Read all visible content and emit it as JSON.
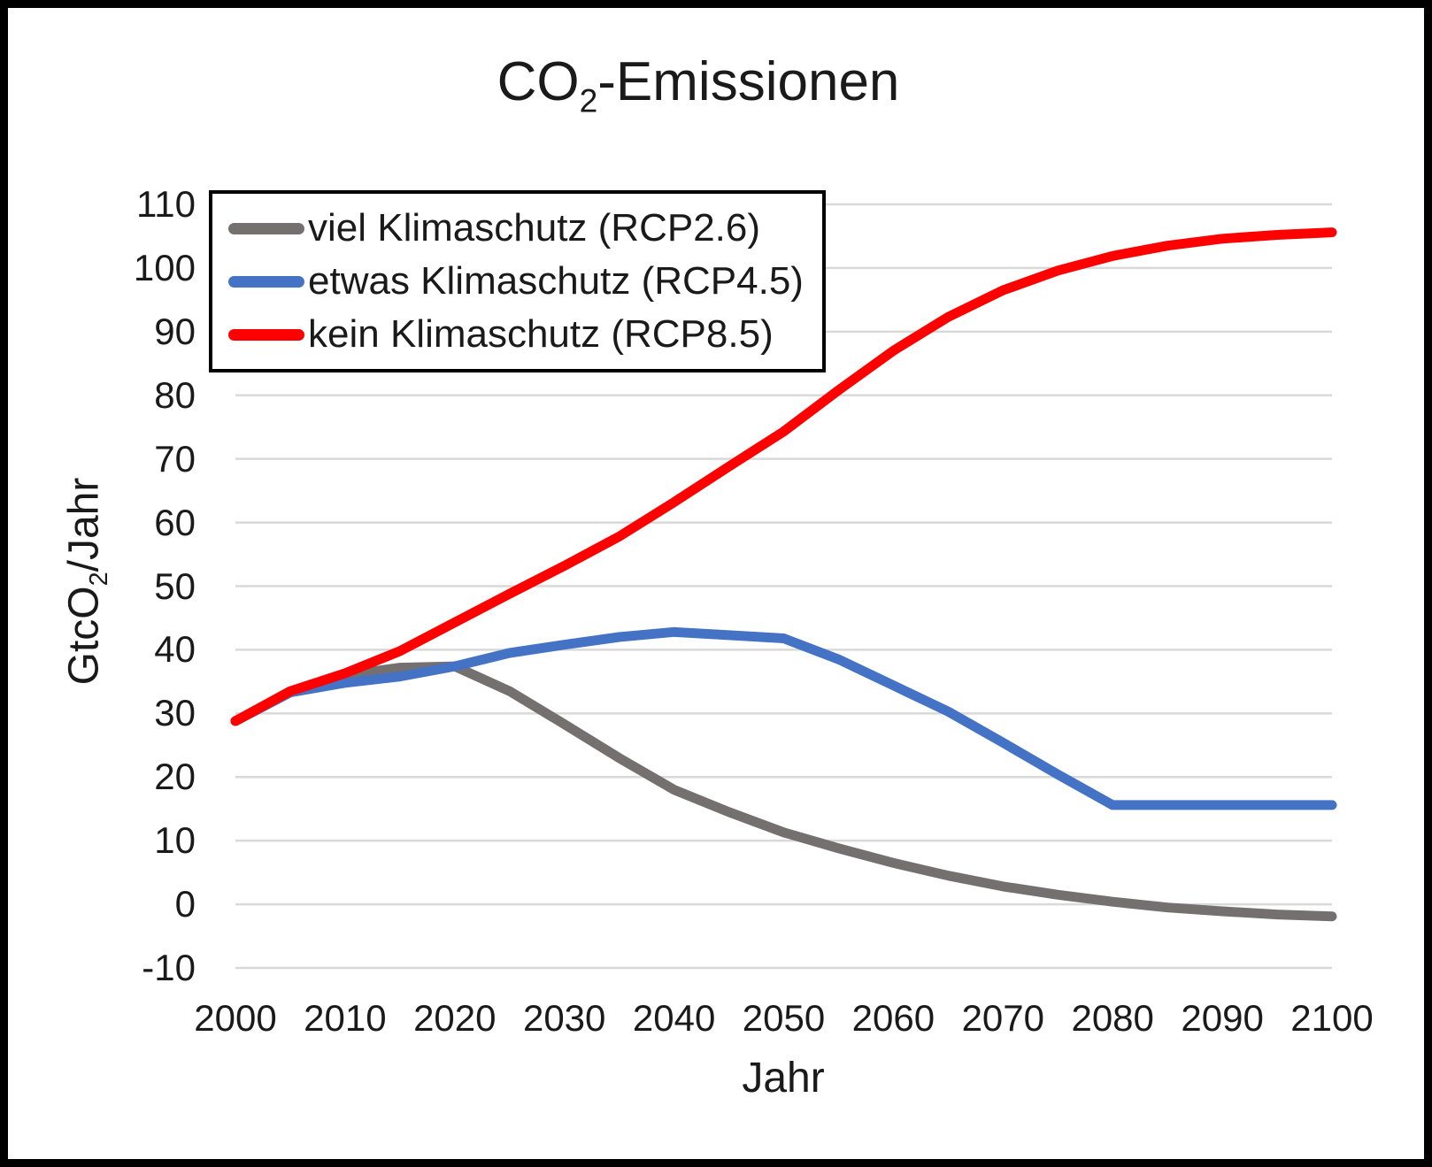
{
  "figure": {
    "title": {
      "prefix": "CO",
      "sub": "2",
      "suffix": "-Emissionen"
    }
  },
  "axes": {
    "y_title": {
      "prefix": "GtcO",
      "sub": "2",
      "suffix": "/Jahr"
    },
    "x_title": "Jahr",
    "y_ticks": [
      "110",
      "100",
      "90",
      "80",
      "70",
      "60",
      "50",
      "40",
      "30",
      "20",
      "10",
      "0",
      "-10"
    ],
    "x_ticks": [
      "2000",
      "2010",
      "2020",
      "2030",
      "2040",
      "2050",
      "2060",
      "2070",
      "2080",
      "2090",
      "2100"
    ]
  },
  "legend": {
    "items": [
      {
        "label": "viel Klimaschutz (RCP2.6)"
      },
      {
        "label": "etwas Klimaschutz (RCP4.5)"
      },
      {
        "label": "kein Klimaschutz (RCP8.5)"
      }
    ]
  },
  "colors": {
    "grid": "#d9d9d9",
    "text": "#1a1a1a",
    "rcp26": "#757070",
    "rcp45": "#4472c4",
    "rcp85": "#ff0000"
  },
  "chart_data": {
    "type": "line",
    "title": "CO2-Emissionen",
    "xlabel": "Jahr",
    "ylabel": "GtcO2/Jahr",
    "x": [
      2000,
      2005,
      2010,
      2015,
      2020,
      2025,
      2030,
      2035,
      2040,
      2045,
      2050,
      2055,
      2060,
      2065,
      2070,
      2075,
      2080,
      2085,
      2090,
      2095,
      2100
    ],
    "series": [
      {
        "name": "viel Klimaschutz (RCP2.6)",
        "color": "#757070",
        "values": [
          28.8,
          33.3,
          36.0,
          37.2,
          37.4,
          33.5,
          28.3,
          23.0,
          18.0,
          14.5,
          11.3,
          8.8,
          6.5,
          4.5,
          2.8,
          1.5,
          0.4,
          -0.5,
          -1.1,
          -1.6,
          -1.9
        ]
      },
      {
        "name": "etwas Klimaschutz (RCP4.5)",
        "color": "#4472c4",
        "values": [
          28.8,
          33.3,
          34.8,
          35.8,
          37.4,
          39.5,
          40.8,
          42.0,
          42.8,
          42.3,
          41.8,
          38.5,
          34.4,
          30.3,
          25.4,
          20.4,
          15.6,
          15.6,
          15.6,
          15.6,
          15.6
        ]
      },
      {
        "name": "kein Klimaschutz (RCP8.5)",
        "color": "#ff0000",
        "values": [
          28.8,
          33.5,
          36.3,
          39.8,
          44.3,
          48.8,
          53.2,
          57.8,
          63.2,
          68.8,
          74.3,
          80.8,
          87.0,
          92.3,
          96.5,
          99.6,
          101.9,
          103.5,
          104.6,
          105.2,
          105.6
        ]
      }
    ],
    "xlim": [
      2000,
      2100
    ],
    "ylim": [
      -10,
      110
    ],
    "x_step": 10,
    "y_step": 10,
    "grid": "horizontal-only",
    "legend_position": "top-left-inside"
  }
}
